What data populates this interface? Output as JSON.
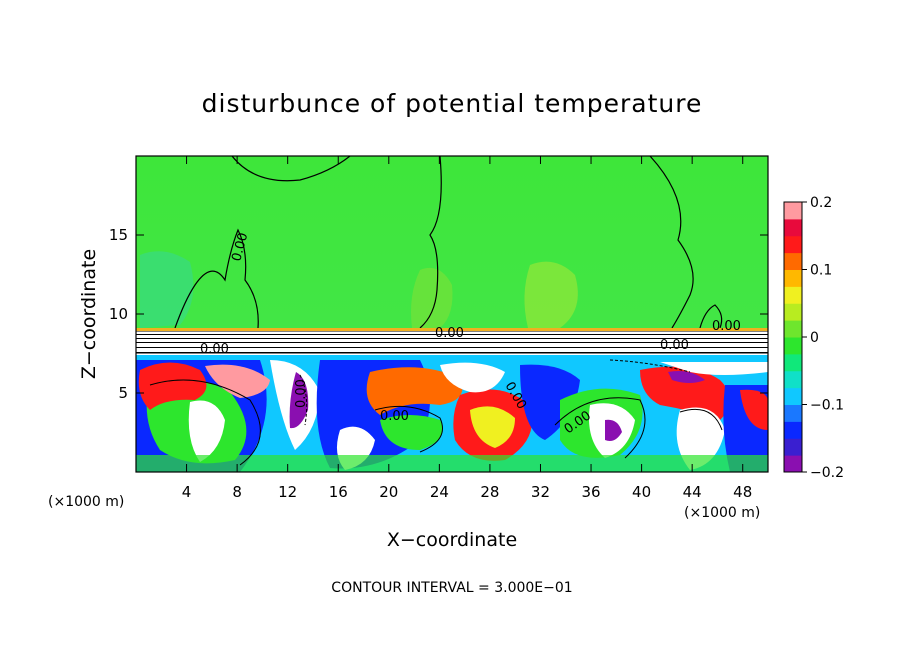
{
  "chart_data": {
    "type": "heatmap",
    "title": "disturbunce of potential temperature",
    "xlabel": "X−coordinate",
    "ylabel": "Z−coordinate",
    "x_unit_left": "(×1000 m)",
    "x_unit_right": "(×1000 m)",
    "footer": "CONTOUR INTERVAL = 3.000E−01",
    "xlim": [
      0,
      50
    ],
    "ylim": [
      0,
      20
    ],
    "x_ticks": [
      4,
      8,
      12,
      16,
      20,
      24,
      28,
      32,
      36,
      40,
      44,
      48
    ],
    "y_ticks": [
      5,
      10,
      15
    ],
    "x_tick_labels": [
      "4",
      "8",
      "12",
      "16",
      "20",
      "24",
      "28",
      "32",
      "36",
      "40",
      "44",
      "48"
    ],
    "y_tick_labels": [
      "5",
      "10",
      "15"
    ],
    "colorbar": {
      "min": -0.2,
      "max": 0.2,
      "ticks": [
        0.2,
        0.1,
        0,
        -0.1,
        -0.2
      ],
      "tick_labels": [
        "0.2",
        "0.1",
        "0",
        "−0.1",
        "−0.2"
      ],
      "colors": [
        "#8a0fb0",
        "#3a1fd0",
        "#0a28ff",
        "#1a78ff",
        "#10c8ff",
        "#10e0c8",
        "#10e87a",
        "#2de62d",
        "#6ee62d",
        "#b8ec20",
        "#f0f020",
        "#ffb800",
        "#ff6a00",
        "#ff1a1a",
        "#e80a3c",
        "#ff9aa0"
      ]
    },
    "contour_labels": [
      "0.00",
      "0.00",
      "0.00",
      "0.00",
      "0.00",
      "0.00",
      "0.00",
      "0.00",
      "0.00"
    ],
    "grid": false,
    "legend": "colorbar-right"
  }
}
